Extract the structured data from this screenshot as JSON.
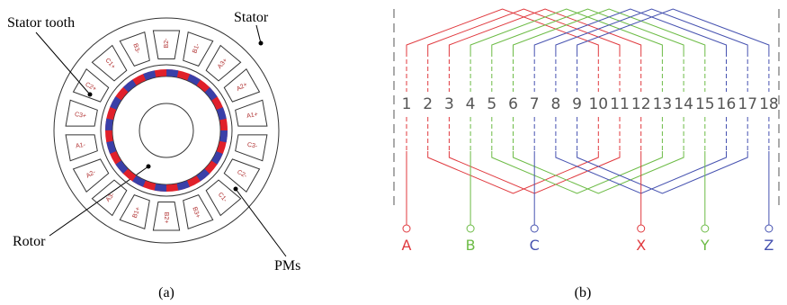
{
  "panel_a": {
    "caption": "(a)",
    "labels": {
      "stator": "Stator",
      "stator_tooth": "Stator tooth",
      "rotor": "Rotor",
      "pms": "PMs"
    },
    "slots": [
      "B2-",
      "B1-",
      "A3+",
      "A2+",
      "A1+",
      "C3-",
      "C2-",
      "C1-",
      "B3+",
      "B2+",
      "B1+",
      "A3-",
      "A2-",
      "A1-",
      "C3+",
      "C2+",
      "C1+",
      "B3-"
    ]
  },
  "panel_b": {
    "caption": "(b)",
    "slot_numbers": [
      "1",
      "2",
      "3",
      "4",
      "5",
      "6",
      "7",
      "8",
      "9",
      "10",
      "11",
      "12",
      "13",
      "14",
      "15",
      "16",
      "17",
      "18"
    ],
    "terminals": [
      "A",
      "B",
      "C",
      "X",
      "Y",
      "Z"
    ]
  }
}
